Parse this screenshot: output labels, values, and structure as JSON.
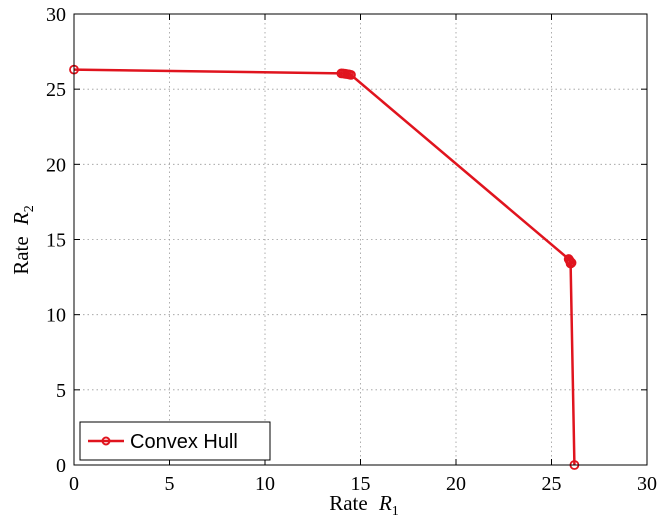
{
  "chart_data": {
    "type": "line",
    "xlabel": "Rate R1",
    "ylabel": "Rate R2",
    "xlabel_parts": {
      "text": "Rate",
      "var": "R",
      "sub": "1"
    },
    "ylabel_parts": {
      "text": "Rate",
      "var": "R",
      "sub": "2"
    },
    "xlim": [
      0,
      30
    ],
    "ylim": [
      0,
      30
    ],
    "xticks": [
      0,
      5,
      10,
      15,
      20,
      25,
      30
    ],
    "yticks": [
      0,
      5,
      10,
      15,
      20,
      25,
      30
    ],
    "xtick_labels": [
      "0",
      "5",
      "10",
      "15",
      "20",
      "25",
      "30"
    ],
    "ytick_labels": [
      "0",
      "5",
      "10",
      "15",
      "20",
      "25",
      "30"
    ],
    "grid": true,
    "legend_position": "bottom-left",
    "series": [
      {
        "name": "Convex Hull",
        "color": "#e0141e",
        "marker": "circle",
        "x": [
          0,
          14.0,
          14.1,
          14.2,
          14.3,
          14.4,
          14.5,
          25.9,
          25.95,
          26.0,
          26.05,
          26.0,
          26.2
        ],
        "y": [
          26.3,
          26.05,
          26.04,
          26.02,
          26.0,
          25.98,
          25.95,
          13.7,
          13.6,
          13.5,
          13.45,
          13.4,
          0
        ]
      }
    ]
  }
}
